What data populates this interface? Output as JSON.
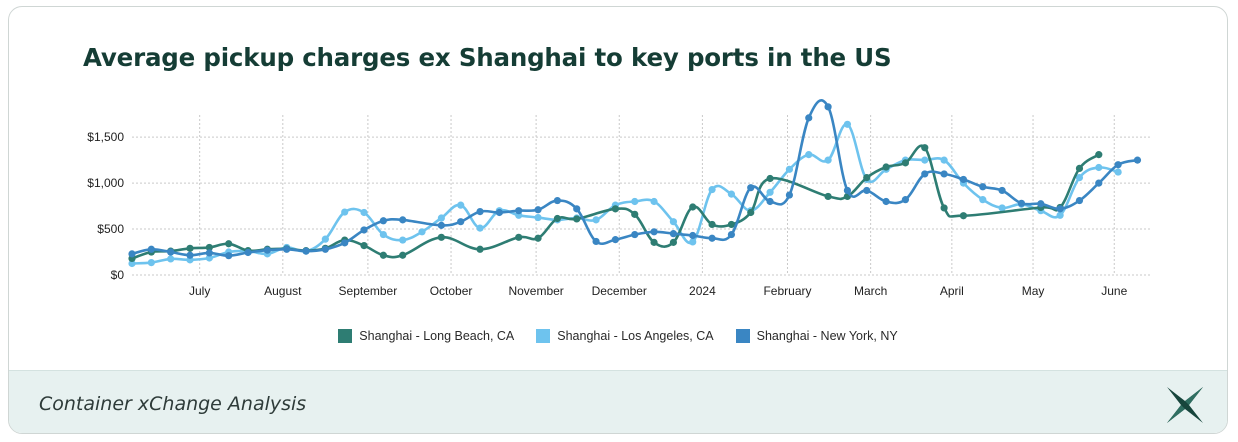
{
  "title": "Average pickup charges ex Shanghai to key ports in the US",
  "footer": {
    "text": "Container xChange Analysis",
    "logo_icon": "container-xchange-logo-icon"
  },
  "chart_data": {
    "type": "line",
    "title": "Average pickup charges ex Shanghai to key ports in the US",
    "xlabel": "",
    "ylabel": "",
    "x_tick_labels": [
      "July",
      "August",
      "September",
      "October",
      "November",
      "December",
      "2024",
      "February",
      "March",
      "April",
      "May",
      "June"
    ],
    "y_tick_labels": [
      "$0",
      "$500",
      "$1,000",
      "$1,500"
    ],
    "ylim": [
      0,
      1850
    ],
    "grid": true,
    "legend": "bottom",
    "x_unit": "weeks since mid-June 2023 (approx.)",
    "series": [
      {
        "name": "Shanghai - Long Beach, CA",
        "color": "#2e7d73",
        "points": [
          [
            0,
            180
          ],
          [
            1,
            250
          ],
          [
            2,
            260
          ],
          [
            3,
            290
          ],
          [
            4,
            300
          ],
          [
            5,
            340
          ],
          [
            6,
            265
          ],
          [
            7,
            280
          ],
          [
            8,
            285
          ],
          [
            9,
            265
          ],
          [
            10,
            290
          ],
          [
            11,
            380
          ],
          [
            12,
            320
          ],
          [
            13,
            215
          ],
          [
            14,
            215
          ],
          [
            16,
            410
          ],
          [
            18,
            280
          ],
          [
            20,
            410
          ],
          [
            21,
            400
          ],
          [
            22,
            615
          ],
          [
            23,
            610
          ],
          [
            25,
            720
          ],
          [
            26,
            660
          ],
          [
            27,
            355
          ],
          [
            28,
            355
          ],
          [
            29,
            740
          ],
          [
            30,
            550
          ],
          [
            31,
            550
          ],
          [
            32,
            680
          ],
          [
            33,
            1050
          ],
          [
            36,
            855
          ],
          [
            37,
            855
          ],
          [
            38,
            1060
          ],
          [
            39,
            1175
          ],
          [
            40,
            1220
          ],
          [
            41,
            1385
          ],
          [
            42,
            730
          ],
          [
            43,
            645
          ],
          [
            47,
            735
          ],
          [
            48,
            735
          ],
          [
            49,
            1160
          ],
          [
            50,
            1310
          ]
        ]
      },
      {
        "name": "Shanghai - Los Angeles, CA",
        "color": "#6ec3ee",
        "points": [
          [
            0,
            125
          ],
          [
            1,
            135
          ],
          [
            2,
            175
          ],
          [
            3,
            165
          ],
          [
            4,
            185
          ],
          [
            5,
            250
          ],
          [
            6,
            260
          ],
          [
            7,
            230
          ],
          [
            8,
            300
          ],
          [
            9,
            260
          ],
          [
            10,
            390
          ],
          [
            11,
            685
          ],
          [
            12,
            680
          ],
          [
            13,
            440
          ],
          [
            14,
            380
          ],
          [
            15,
            470
          ],
          [
            16,
            620
          ],
          [
            17,
            760
          ],
          [
            18,
            510
          ],
          [
            19,
            700
          ],
          [
            20,
            650
          ],
          [
            21,
            625
          ],
          [
            22,
            600
          ],
          [
            23,
            620
          ],
          [
            24,
            600
          ],
          [
            25,
            760
          ],
          [
            26,
            800
          ],
          [
            27,
            800
          ],
          [
            28,
            580
          ],
          [
            29,
            360
          ],
          [
            30,
            930
          ],
          [
            31,
            880
          ],
          [
            32,
            700
          ],
          [
            33,
            900
          ],
          [
            34,
            1150
          ],
          [
            35,
            1310
          ],
          [
            36,
            1250
          ],
          [
            37,
            1640
          ],
          [
            38,
            1040
          ],
          [
            39,
            1150
          ],
          [
            40,
            1250
          ],
          [
            41,
            1250
          ],
          [
            42,
            1250
          ],
          [
            43,
            1000
          ],
          [
            44,
            820
          ],
          [
            45,
            730
          ],
          [
            46,
            770
          ],
          [
            47,
            700
          ],
          [
            48,
            650
          ],
          [
            49,
            1060
          ],
          [
            50,
            1170
          ],
          [
            51,
            1120
          ]
        ]
      },
      {
        "name": "Shanghai - New York, NY",
        "color": "#3a86c3",
        "points": [
          [
            0,
            230
          ],
          [
            1,
            280
          ],
          [
            2,
            250
          ],
          [
            3,
            215
          ],
          [
            4,
            240
          ],
          [
            5,
            210
          ],
          [
            6,
            245
          ],
          [
            7,
            270
          ],
          [
            8,
            280
          ],
          [
            9,
            260
          ],
          [
            10,
            280
          ],
          [
            11,
            350
          ],
          [
            12,
            490
          ],
          [
            13,
            590
          ],
          [
            14,
            600
          ],
          [
            16,
            540
          ],
          [
            17,
            580
          ],
          [
            18,
            690
          ],
          [
            19,
            680
          ],
          [
            20,
            700
          ],
          [
            21,
            710
          ],
          [
            22,
            810
          ],
          [
            23,
            720
          ],
          [
            24,
            365
          ],
          [
            25,
            385
          ],
          [
            26,
            440
          ],
          [
            27,
            470
          ],
          [
            28,
            450
          ],
          [
            29,
            430
          ],
          [
            30,
            400
          ],
          [
            31,
            440
          ],
          [
            32,
            950
          ],
          [
            33,
            800
          ],
          [
            34,
            870
          ],
          [
            35,
            1710
          ],
          [
            36,
            1830
          ],
          [
            37,
            920
          ],
          [
            38,
            920
          ],
          [
            39,
            800
          ],
          [
            40,
            820
          ],
          [
            41,
            1100
          ],
          [
            42,
            1100
          ],
          [
            43,
            1040
          ],
          [
            44,
            960
          ],
          [
            45,
            920
          ],
          [
            46,
            780
          ],
          [
            47,
            775
          ],
          [
            48,
            720
          ],
          [
            49,
            810
          ],
          [
            50,
            1000
          ],
          [
            51,
            1200
          ],
          [
            52,
            1250
          ]
        ]
      }
    ]
  }
}
